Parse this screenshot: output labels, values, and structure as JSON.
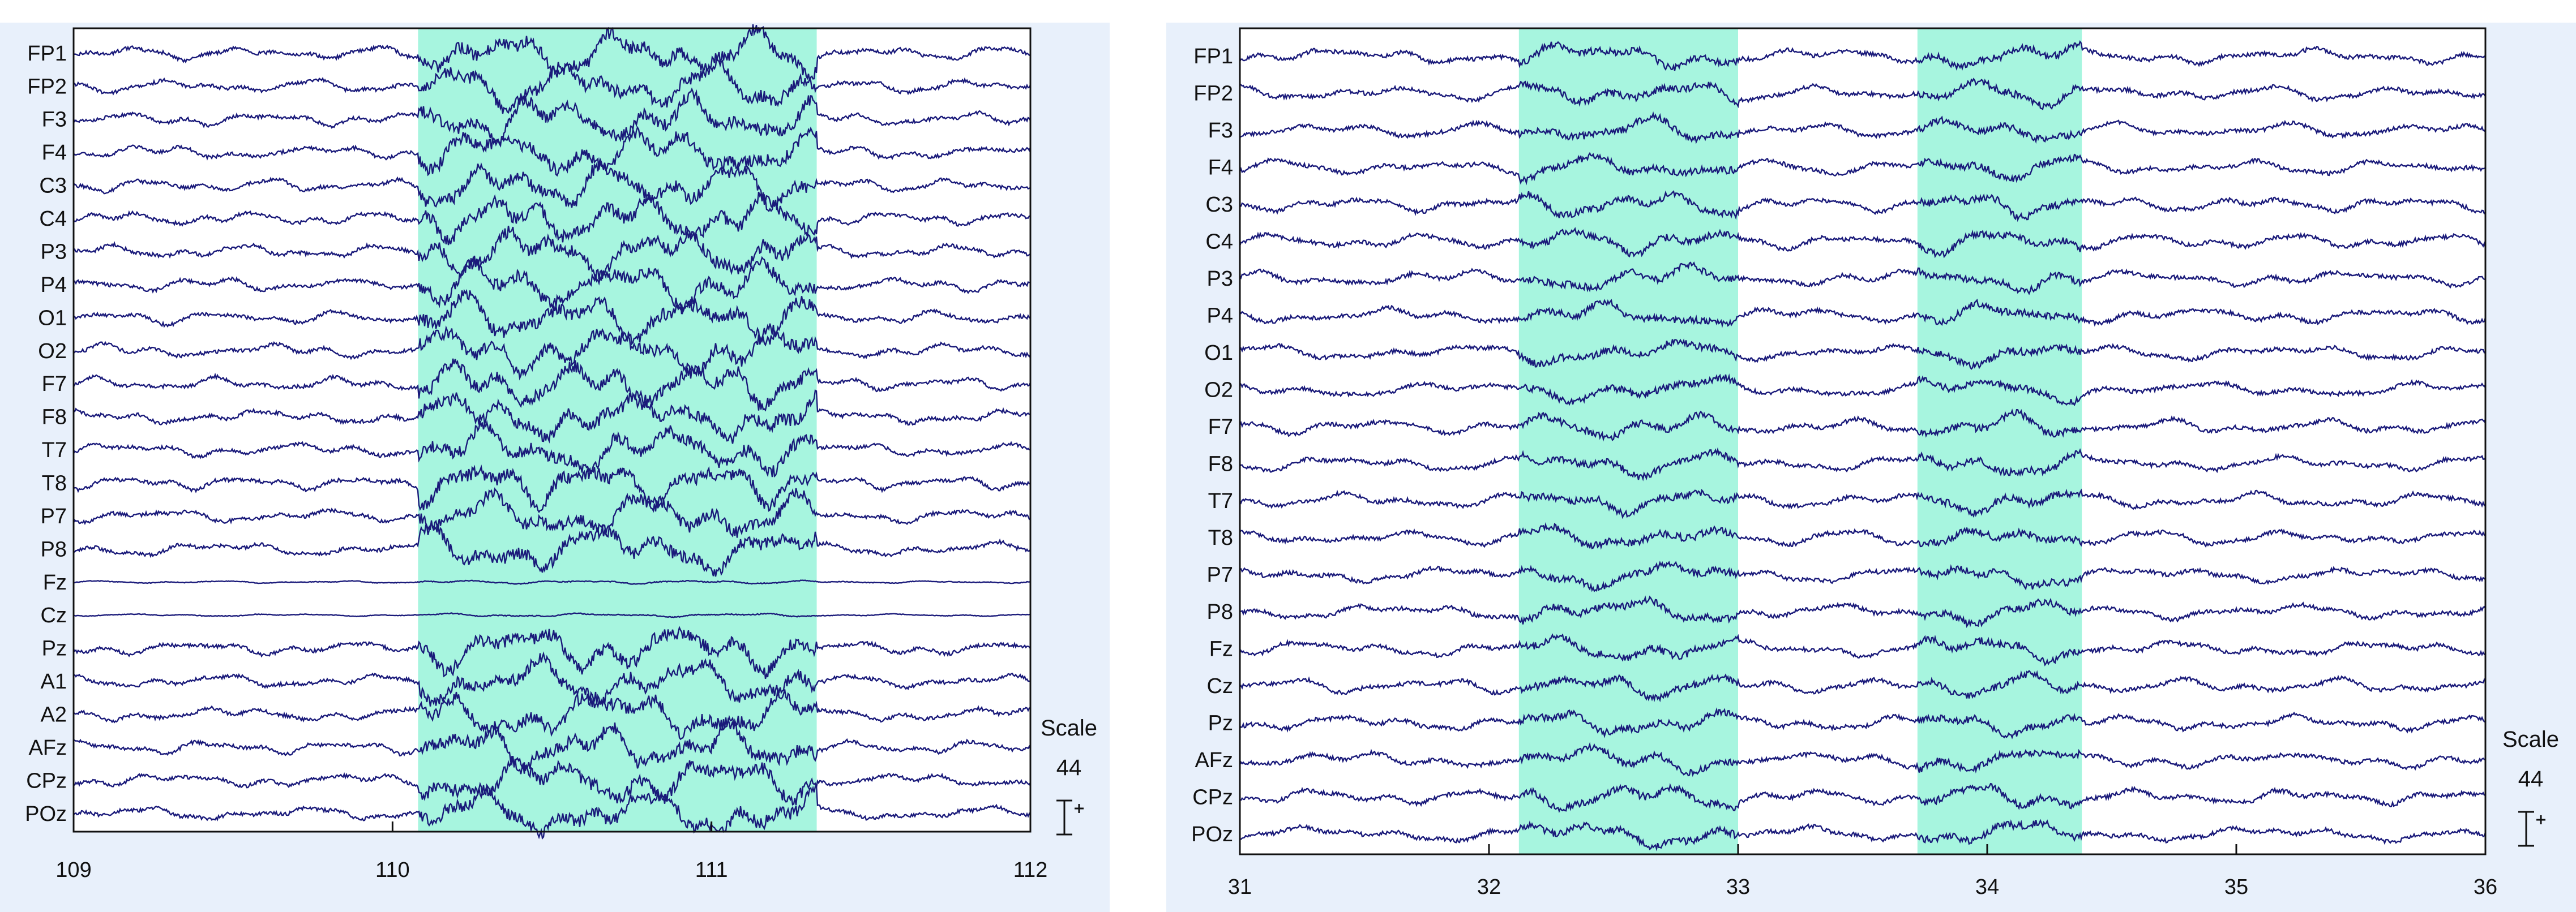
{
  "colors": {
    "background": "#ffffff",
    "panel_background": "#e8f0fb",
    "plot_background": "#ffffff",
    "highlight": "#a7f5df",
    "trace": "#1a1a7a",
    "axis": "#111111"
  },
  "chart_data": [
    {
      "type": "line",
      "title": "",
      "xlabel": "",
      "ylabel": "",
      "xlim": [
        109,
        112
      ],
      "x_ticks": [
        "109",
        "110",
        "111",
        "112"
      ],
      "highlight_ranges": [
        [
          110.08,
          111.33
        ]
      ],
      "channels": [
        "FP1",
        "FP2",
        "F3",
        "F4",
        "C3",
        "C4",
        "P3",
        "P4",
        "O1",
        "O2",
        "F7",
        "F8",
        "T7",
        "T8",
        "P7",
        "P8",
        "Fz",
        "Cz",
        "Pz",
        "A1",
        "A2",
        "AFz",
        "CPz",
        "POz"
      ],
      "scale_label": "Scale",
      "scale_value": "44",
      "scale_icon": "scale-bar-icon",
      "grid": false,
      "legend": "none"
    },
    {
      "type": "line",
      "title": "",
      "xlabel": "",
      "ylabel": "",
      "xlim": [
        31,
        36
      ],
      "x_ticks": [
        "31",
        "32",
        "33",
        "34",
        "35",
        "36"
      ],
      "highlight_ranges": [
        [
          32.12,
          33.0
        ],
        [
          33.72,
          34.38
        ]
      ],
      "channels": [
        "FP1",
        "FP2",
        "F3",
        "F4",
        "C3",
        "C4",
        "P3",
        "P4",
        "O1",
        "O2",
        "F7",
        "F8",
        "T7",
        "T8",
        "P7",
        "P8",
        "Fz",
        "Cz",
        "Pz",
        "AFz",
        "CPz",
        "POz"
      ],
      "scale_label": "Scale",
      "scale_value": "44",
      "scale_icon": "scale-bar-icon",
      "grid": false,
      "legend": "none"
    }
  ]
}
